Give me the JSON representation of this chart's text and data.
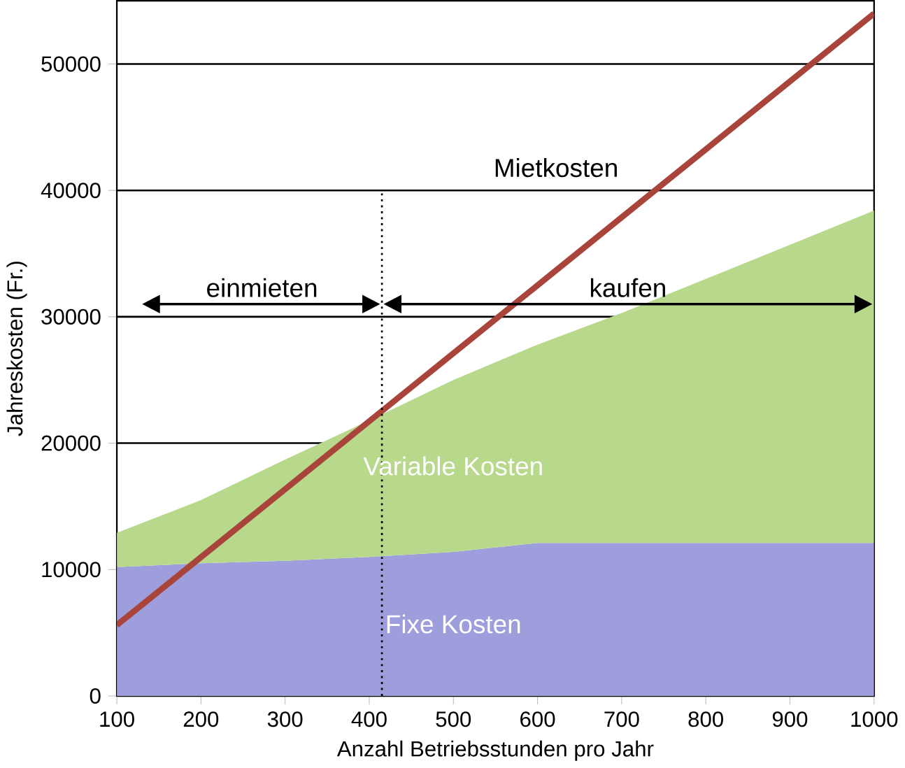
{
  "chart_data": {
    "type": "area",
    "xlabel": "Anzahl Betriebsstunden pro Jahr",
    "ylabel": "Jahreskosten (Fr.)",
    "x": [
      100,
      200,
      300,
      400,
      500,
      600,
      700,
      800,
      900,
      1000
    ],
    "stacked": true,
    "series": [
      {
        "name": "Fixe Kosten",
        "color": "#9d9edb",
        "values": [
          10200,
          10500,
          10700,
          11000,
          11400,
          12100,
          12100,
          12100,
          12100,
          12100
        ]
      },
      {
        "name": "Variable Kosten",
        "color": "#b8d98c",
        "values": [
          2700,
          5000,
          8000,
          10800,
          13600,
          15700,
          18200,
          20900,
          23600,
          26300
        ]
      },
      {
        "name": "Mietkosten",
        "type": "line",
        "color": "#a9443a",
        "x": [
          100,
          1000
        ],
        "values": [
          5600,
          54000
        ]
      }
    ],
    "xlim": [
      100,
      1000
    ],
    "ylim": [
      0,
      55000
    ],
    "xticks": [
      100,
      200,
      300,
      400,
      500,
      600,
      700,
      800,
      900,
      1000
    ],
    "yticks": [
      0,
      10000,
      20000,
      30000,
      40000,
      50000
    ],
    "grid": "y",
    "line_style": "solid",
    "marker": "none",
    "ref_lines": [
      {
        "axis": "x",
        "value": 415,
        "line_style": "dotted",
        "color": "#000000"
      }
    ],
    "annotations": [
      "einmieten",
      "kaufen"
    ]
  }
}
